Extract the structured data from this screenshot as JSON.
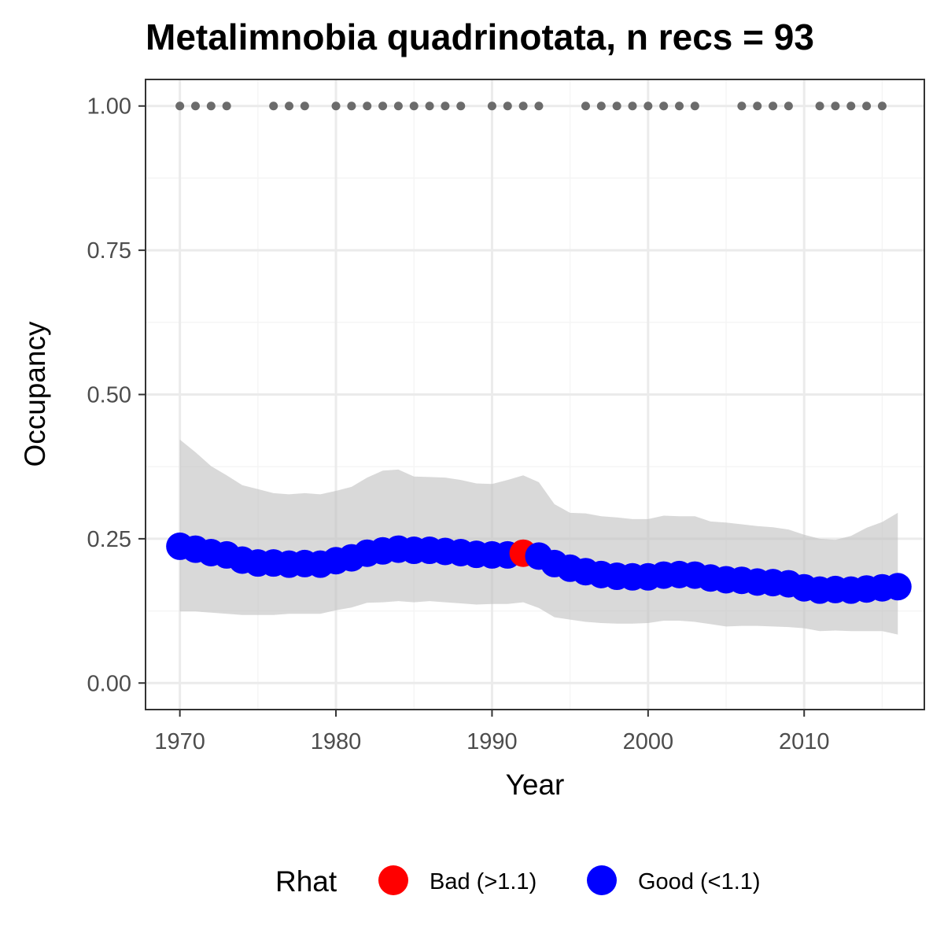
{
  "chart_data": {
    "type": "line",
    "title": "Metalimnobia quadrinotata, n recs = 93",
    "xlabel": "Year",
    "ylabel": "Occupancy",
    "xlim": [
      1967.8,
      2017.7
    ],
    "ylim": [
      -0.046,
      1.046
    ],
    "x_ticks": [
      1970,
      1980,
      1990,
      2000,
      2010
    ],
    "y_ticks": [
      0.0,
      0.25,
      0.5,
      0.75,
      1.0
    ],
    "y_tick_labels": [
      "0.00",
      "0.25",
      "0.50",
      "0.75",
      "1.00"
    ],
    "x_minor_ticks": [
      1975,
      1985,
      1995,
      2005,
      2015
    ],
    "y_minor_ticks": [
      0.125,
      0.375,
      0.625,
      0.875
    ],
    "grid": true,
    "years": [
      1970,
      1971,
      1972,
      1973,
      1974,
      1975,
      1976,
      1977,
      1978,
      1979,
      1980,
      1981,
      1982,
      1983,
      1984,
      1985,
      1986,
      1987,
      1988,
      1989,
      1990,
      1991,
      1992,
      1993,
      1994,
      1995,
      1996,
      1997,
      1998,
      1999,
      2000,
      2001,
      2002,
      2003,
      2004,
      2005,
      2006,
      2007,
      2008,
      2009,
      2010,
      2011,
      2012,
      2013,
      2014,
      2015,
      2016
    ],
    "occupancy": [
      0.237,
      0.232,
      0.226,
      0.222,
      0.213,
      0.208,
      0.208,
      0.206,
      0.207,
      0.206,
      0.212,
      0.217,
      0.225,
      0.229,
      0.232,
      0.23,
      0.23,
      0.228,
      0.226,
      0.223,
      0.222,
      0.222,
      0.225,
      0.22,
      0.207,
      0.199,
      0.193,
      0.188,
      0.185,
      0.184,
      0.184,
      0.187,
      0.188,
      0.187,
      0.182,
      0.179,
      0.178,
      0.175,
      0.174,
      0.172,
      0.165,
      0.161,
      0.162,
      0.161,
      0.163,
      0.165,
      0.167
    ],
    "lower": [
      0.124,
      0.124,
      0.122,
      0.12,
      0.118,
      0.118,
      0.118,
      0.12,
      0.12,
      0.12,
      0.126,
      0.131,
      0.139,
      0.14,
      0.142,
      0.14,
      0.142,
      0.14,
      0.138,
      0.136,
      0.137,
      0.137,
      0.14,
      0.13,
      0.114,
      0.11,
      0.106,
      0.104,
      0.103,
      0.103,
      0.104,
      0.108,
      0.108,
      0.106,
      0.102,
      0.098,
      0.099,
      0.099,
      0.098,
      0.097,
      0.095,
      0.09,
      0.091,
      0.09,
      0.09,
      0.09,
      0.084
    ],
    "upper": [
      0.422,
      0.4,
      0.376,
      0.36,
      0.343,
      0.336,
      0.329,
      0.327,
      0.329,
      0.327,
      0.333,
      0.34,
      0.356,
      0.368,
      0.37,
      0.358,
      0.357,
      0.356,
      0.352,
      0.346,
      0.345,
      0.352,
      0.36,
      0.348,
      0.31,
      0.295,
      0.294,
      0.289,
      0.287,
      0.284,
      0.284,
      0.29,
      0.289,
      0.289,
      0.28,
      0.278,
      0.275,
      0.272,
      0.27,
      0.266,
      0.257,
      0.25,
      0.248,
      0.255,
      0.269,
      0.279,
      0.295
    ],
    "rhat": [
      "Good",
      "Good",
      "Good",
      "Good",
      "Good",
      "Good",
      "Good",
      "Good",
      "Good",
      "Good",
      "Good",
      "Good",
      "Good",
      "Good",
      "Good",
      "Good",
      "Good",
      "Good",
      "Good",
      "Good",
      "Good",
      "Good",
      "Bad",
      "Good",
      "Good",
      "Good",
      "Good",
      "Good",
      "Good",
      "Good",
      "Good",
      "Good",
      "Good",
      "Good",
      "Good",
      "Good",
      "Good",
      "Good",
      "Good",
      "Good",
      "Good",
      "Good",
      "Good",
      "Good",
      "Good",
      "Good",
      "Good"
    ],
    "record_years": [
      1970,
      1971,
      1972,
      1973,
      1976,
      1977,
      1978,
      1980,
      1981,
      1982,
      1983,
      1984,
      1985,
      1986,
      1987,
      1988,
      1990,
      1991,
      1992,
      1993,
      1996,
      1997,
      1998,
      1999,
      2000,
      2001,
      2002,
      2003,
      2006,
      2007,
      2008,
      2009,
      2011,
      2012,
      2013,
      2014,
      2015
    ],
    "record_value": 1.0,
    "legend": {
      "title": "Rhat",
      "position": "bottom",
      "entries": [
        {
          "label": "Bad (>1.1)",
          "key": "Bad",
          "color": "#ff0000"
        },
        {
          "label": "Good (<1.1)",
          "key": "Good",
          "color": "#0000ff"
        }
      ]
    },
    "colors": {
      "ribbon": "#bfbfbf",
      "record_points": "#6b6b6b",
      "panel_border": "#333333",
      "grid_major": "#ebebeb",
      "grid_minor": "#f5f5f5"
    }
  }
}
